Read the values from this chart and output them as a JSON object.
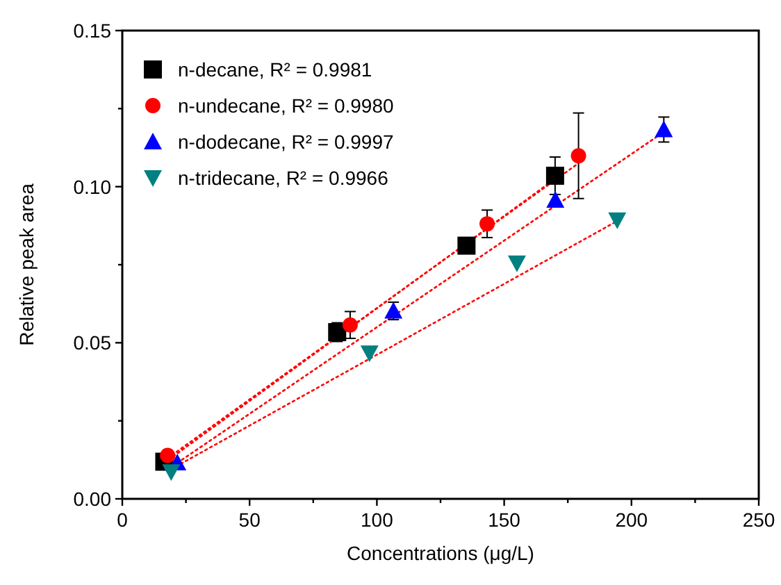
{
  "chart_data": {
    "type": "scatter",
    "xlabel": "Concentrations (μg/L)",
    "ylabel": "Relative peak area",
    "xlim": [
      0,
      250
    ],
    "xticks": [
      0,
      {
        "value": 25,
        "label": null
      },
      50,
      {
        "value": 75,
        "label": null
      },
      100,
      {
        "value": 125,
        "label": null
      },
      150,
      {
        "value": 175,
        "label": null
      },
      200,
      {
        "value": 225,
        "label": null
      },
      250
    ],
    "ylim": [
      0,
      0.15
    ],
    "yticks": [
      {
        "value": 0,
        "label": "0.00"
      },
      {
        "value": 0.025,
        "label": null
      },
      {
        "value": 0.05,
        "label": "0.05"
      },
      {
        "value": 0.075,
        "label": null
      },
      {
        "value": 0.1,
        "label": "0.10"
      },
      {
        "value": 0.125,
        "label": null
      },
      {
        "value": 0.15,
        "label": "0.15"
      }
    ],
    "grid": false,
    "legend": "top left",
    "series": [
      {
        "name": "n-decane, R² = 0.9981",
        "color": "#000000",
        "marker": "square",
        "x": [
          16.5,
          84.4,
          135.2,
          170
        ],
        "values": [
          0.0119,
          0.0534,
          0.0811,
          0.1035
        ],
        "errors": [
          null,
          0.003,
          null,
          0.006
        ]
      },
      {
        "name": "n-undecane, R² = 0.9980",
        "color": "#ff0000",
        "marker": "circle",
        "x": [
          17.8,
          89.5,
          143.3,
          179.2
        ],
        "values": [
          0.0139,
          0.0557,
          0.0881,
          0.1099
        ],
        "errors": [
          null,
          0.0043,
          0.0044,
          0.0137
        ]
      },
      {
        "name": "n-dodecane, R² = 0.9997",
        "color": "#0000ff",
        "marker": "triangle",
        "x": [
          21.6,
          106.5,
          170.1,
          212.7
        ],
        "values": [
          0.0116,
          0.0602,
          0.0957,
          0.1183
        ],
        "errors": [
          null,
          0.0028,
          null,
          0.004
        ]
      },
      {
        "name": "n-tridecane, R² = 0.9966",
        "color": "#008080",
        "marker": "triangle-down",
        "x": [
          19.2,
          97.1,
          155,
          194.4
        ],
        "values": [
          0.0086,
          0.0467,
          0.0755,
          0.0893
        ],
        "errors": [
          null,
          null,
          null,
          null
        ]
      },
      {
        "type": "line",
        "color": "#ff0000",
        "line_style": "dotted",
        "x": [
          16.5,
          170
        ],
        "values": [
          0.0115,
          0.1025
        ]
      },
      {
        "type": "line",
        "color": "#ff0000",
        "line_style": "dotted",
        "x": [
          17.8,
          179.2
        ],
        "values": [
          0.013,
          0.1075
        ]
      },
      {
        "type": "line",
        "color": "#ff0000",
        "line_style": "dotted",
        "x": [
          21.6,
          212.7
        ],
        "values": [
          0.0115,
          0.1175
        ]
      },
      {
        "type": "line",
        "color": "#ff0000",
        "line_style": "dotted",
        "x": [
          19.2,
          194.4
        ],
        "values": [
          0.0095,
          0.089
        ]
      }
    ]
  }
}
